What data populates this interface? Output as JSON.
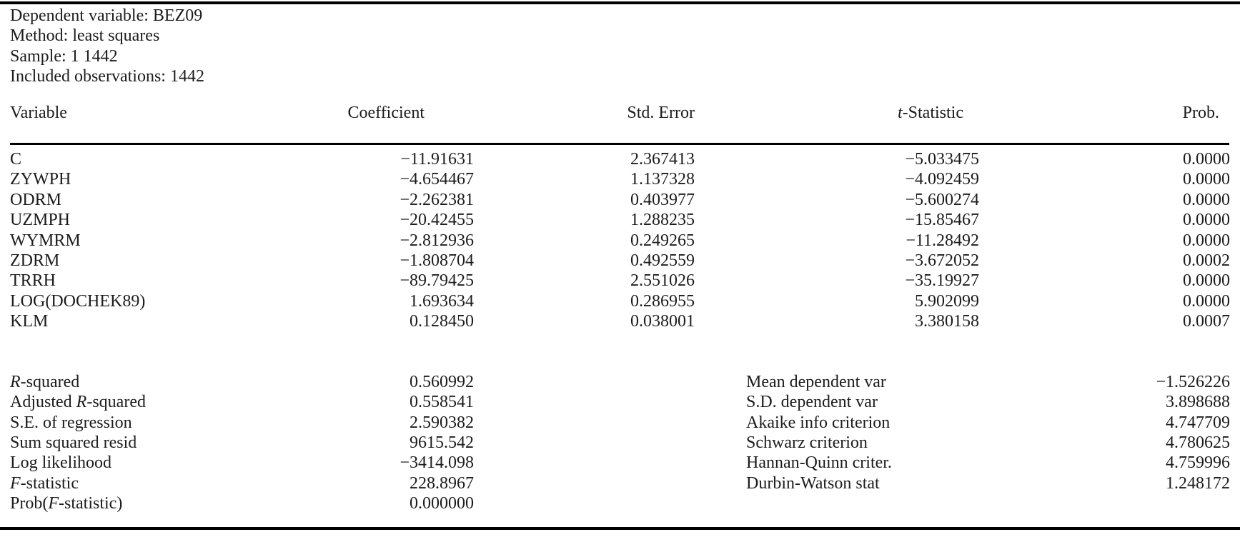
{
  "info": {
    "lines": [
      "Dependent variable: BEZ09",
      "Method: least squares",
      "Sample: 1 1442",
      "Included observations: 1442"
    ]
  },
  "table": {
    "columns": [
      "Variable",
      "Coefficient",
      "Std. Error",
      "t-Statistic",
      "Prob."
    ],
    "rows": [
      {
        "variable": "C",
        "coefficient": "−11.91631",
        "std_error": "2.367413",
        "t_statistic": "−5.033475",
        "prob": "0.0000"
      },
      {
        "variable": "ZYWPH",
        "coefficient": "−4.654467",
        "std_error": "1.137328",
        "t_statistic": "−4.092459",
        "prob": "0.0000"
      },
      {
        "variable": "ODRM",
        "coefficient": "−2.262381",
        "std_error": "0.403977",
        "t_statistic": "−5.600274",
        "prob": "0.0000"
      },
      {
        "variable": "UZMPH",
        "coefficient": "−20.42455",
        "std_error": "1.288235",
        "t_statistic": "−15.85467",
        "prob": "0.0000"
      },
      {
        "variable": "WYMRM",
        "coefficient": "−2.812936",
        "std_error": "0.249265",
        "t_statistic": "−11.28492",
        "prob": "0.0000"
      },
      {
        "variable": "ZDRM",
        "coefficient": "−1.808704",
        "std_error": "0.492559",
        "t_statistic": "−3.672052",
        "prob": "0.0002"
      },
      {
        "variable": "TRRH",
        "coefficient": "−89.79425",
        "std_error": "2.551026",
        "t_statistic": "−35.19927",
        "prob": "0.0000"
      },
      {
        "variable": "LOG(DOCHEK89)",
        "coefficient": "1.693634",
        "std_error": "0.286955",
        "t_statistic": "5.902099",
        "prob": "0.0000"
      },
      {
        "variable": "KLM",
        "coefficient": "0.128450",
        "std_error": "0.038001",
        "t_statistic": "3.380158",
        "prob": "0.0007"
      }
    ]
  },
  "summary": {
    "left": [
      {
        "label": "R-squared",
        "value": "0.560992"
      },
      {
        "label": "Adjusted R-squared",
        "value": "0.558541"
      },
      {
        "label": "S.E. of regression",
        "value": "2.590382"
      },
      {
        "label": "Sum squared resid",
        "value": "9615.542"
      },
      {
        "label": "Log likelihood",
        "value": "−3414.098"
      },
      {
        "label": "F-statistic",
        "value": "228.8967"
      },
      {
        "label": "Prob(F-statistic)",
        "value": "0.000000"
      }
    ],
    "right": [
      {
        "label": "Mean dependent var",
        "value": "−1.526226"
      },
      {
        "label": "S.D. dependent var",
        "value": "3.898688"
      },
      {
        "label": "Akaike info criterion",
        "value": "4.747709"
      },
      {
        "label": "Schwarz criterion",
        "value": "4.780625"
      },
      {
        "label": "Hannan-Quinn criter.",
        "value": "4.759996"
      },
      {
        "label": "Durbin-Watson stat",
        "value": "1.248172"
      }
    ]
  },
  "colors": {
    "text": "#1c1c1c",
    "rule": "#000000",
    "background": "#ffffff"
  }
}
